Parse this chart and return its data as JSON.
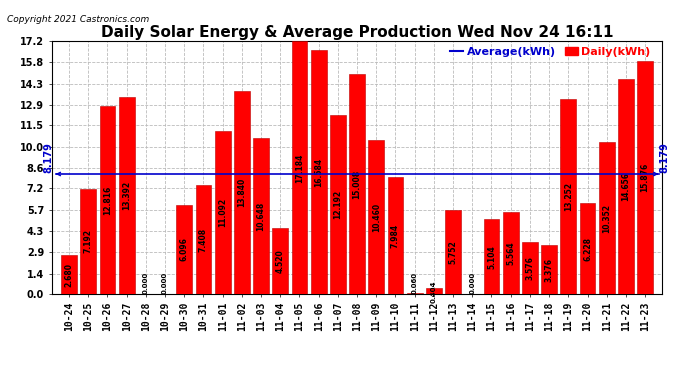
{
  "title": "Daily Solar Energy & Average Production Wed Nov 24 16:11",
  "copyright": "Copyright 2021 Castronics.com",
  "legend_average": "Average(kWh)",
  "legend_daily": "Daily(kWh)",
  "average_value": 8.179,
  "categories": [
    "10-24",
    "10-25",
    "10-26",
    "10-27",
    "10-28",
    "10-29",
    "10-30",
    "10-31",
    "11-01",
    "11-02",
    "11-03",
    "11-04",
    "11-05",
    "11-06",
    "11-07",
    "11-08",
    "11-09",
    "11-10",
    "11-11",
    "11-12",
    "11-13",
    "11-14",
    "11-15",
    "11-16",
    "11-17",
    "11-18",
    "11-19",
    "11-20",
    "11-21",
    "11-22",
    "11-23"
  ],
  "values": [
    2.68,
    7.192,
    12.816,
    13.392,
    0.0,
    0.0,
    6.096,
    7.408,
    11.092,
    13.84,
    10.648,
    4.52,
    17.184,
    16.584,
    12.192,
    15.008,
    10.46,
    7.984,
    0.06,
    0.404,
    5.752,
    0.0,
    5.104,
    5.564,
    3.576,
    3.376,
    13.252,
    6.228,
    10.352,
    14.656,
    15.876
  ],
  "bar_color": "#FF0000",
  "bar_edge_color": "#BB0000",
  "average_line_color": "#0000CC",
  "average_label_color": "#0000CC",
  "average_label": "8.179",
  "ylim": [
    0.0,
    17.2
  ],
  "yticks": [
    0.0,
    1.4,
    2.9,
    4.3,
    5.7,
    7.2,
    8.6,
    10.0,
    11.5,
    12.9,
    14.3,
    15.8,
    17.2
  ],
  "background_color": "#FFFFFF",
  "grid_color": "#BBBBBB",
  "title_fontsize": 11,
  "copyright_fontsize": 6.5,
  "legend_fontsize": 8,
  "tick_fontsize": 7,
  "bar_label_fontsize": 5.5
}
